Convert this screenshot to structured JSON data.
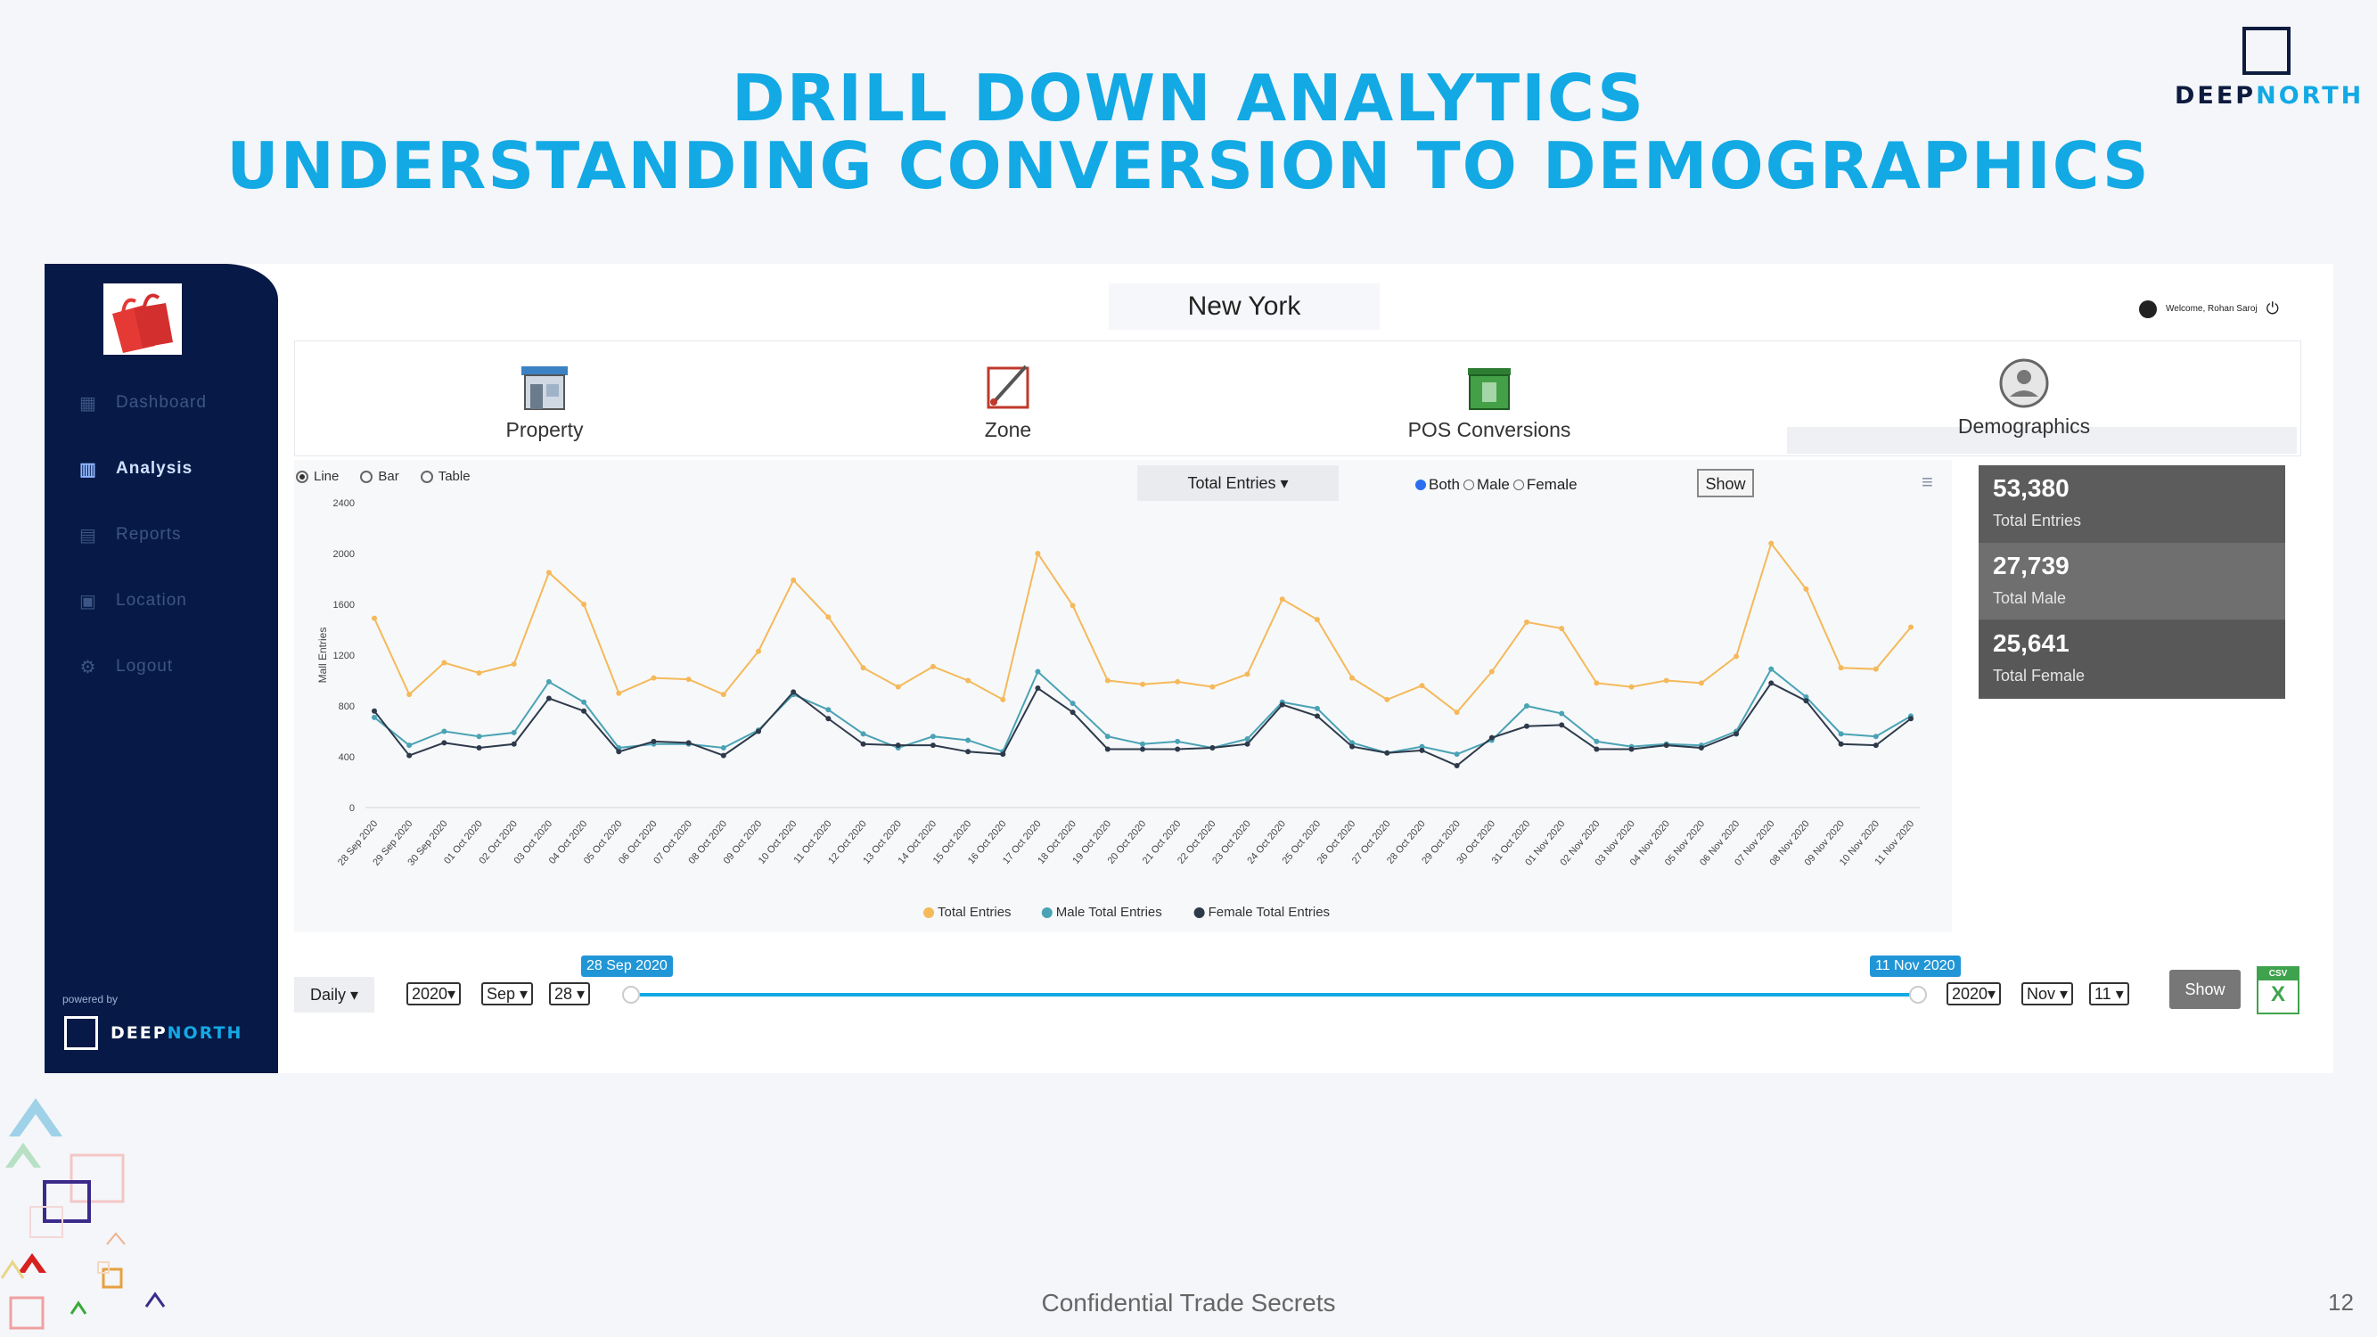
{
  "slide": {
    "title_line1": "DRILL DOWN ANALYTICS",
    "title_line2": "UNDERSTANDING CONVERSION TO DEMOGRAPHICS",
    "brand_a": "DEEP",
    "brand_b": "NORTH",
    "footer": "Confidential Trade Secrets",
    "page_number": "12"
  },
  "sidebar": {
    "items": [
      {
        "label": "Dashboard",
        "icon": "dashboard-icon"
      },
      {
        "label": "Analysis",
        "icon": "analysis-icon"
      },
      {
        "label": "Reports",
        "icon": "reports-icon"
      },
      {
        "label": "Location",
        "icon": "location-icon"
      },
      {
        "label": "Logout",
        "icon": "logout-icon"
      }
    ],
    "active": "Analysis",
    "powered_by": "powered by",
    "brand_a": "DEEP",
    "brand_b": "NORTH"
  },
  "header": {
    "location": "New York",
    "welcome": "Welcome, Rohan Saroj"
  },
  "tabs": [
    {
      "label": "Property",
      "icon": "storefront-icon"
    },
    {
      "label": "Zone",
      "icon": "zone-icon"
    },
    {
      "label": "POS Conversions",
      "icon": "pos-icon"
    },
    {
      "label": "Demographics",
      "icon": "demographics-icon"
    }
  ],
  "controls": {
    "view_modes": [
      "Line",
      "Bar",
      "Table"
    ],
    "view_selected": "Line",
    "metric": "Total Entries",
    "gender_options": [
      "Both",
      "Male",
      "Female"
    ],
    "gender_selected": "Both",
    "show_label": "Show"
  },
  "stats": [
    {
      "value": "53,380",
      "label": "Total Entries"
    },
    {
      "value": "27,739",
      "label": "Total Male"
    },
    {
      "value": "25,641",
      "label": "Total Female"
    }
  ],
  "range": {
    "granularity": "Daily",
    "start": {
      "year": "2020",
      "month": "Sep",
      "day": "28",
      "tag": "28 Sep 2020"
    },
    "end": {
      "year": "2020",
      "month": "Nov",
      "day": "11",
      "tag": "11 Nov 2020"
    },
    "show_label": "Show",
    "csv_label": "CSV"
  },
  "colors": {
    "total": "#f5b95a",
    "male": "#4aa3b5",
    "female": "#2e3a4b"
  },
  "chart_data": {
    "type": "line",
    "ylabel": "Mall Entries",
    "ylim": [
      0,
      2400
    ],
    "yticks": [
      0,
      400,
      800,
      1200,
      1600,
      2000,
      2400
    ],
    "x": [
      "28 Sep 2020",
      "29 Sep 2020",
      "30 Sep 2020",
      "01 Oct 2020",
      "02 Oct 2020",
      "03 Oct 2020",
      "04 Oct 2020",
      "05 Oct 2020",
      "06 Oct 2020",
      "07 Oct 2020",
      "08 Oct 2020",
      "09 Oct 2020",
      "10 Oct 2020",
      "11 Oct 2020",
      "12 Oct 2020",
      "13 Oct 2020",
      "14 Oct 2020",
      "15 Oct 2020",
      "16 Oct 2020",
      "17 Oct 2020",
      "18 Oct 2020",
      "19 Oct 2020",
      "20 Oct 2020",
      "21 Oct 2020",
      "22 Oct 2020",
      "23 Oct 2020",
      "24 Oct 2020",
      "25 Oct 2020",
      "26 Oct 2020",
      "27 Oct 2020",
      "28 Oct 2020",
      "29 Oct 2020",
      "30 Oct 2020",
      "31 Oct 2020",
      "01 Nov 2020",
      "02 Nov 2020",
      "03 Nov 2020",
      "04 Nov 2020",
      "05 Nov 2020",
      "06 Nov 2020",
      "07 Nov 2020",
      "08 Nov 2020",
      "09 Nov 2020",
      "10 Nov 2020",
      "11 Nov 2020"
    ],
    "series": [
      {
        "name": "Total Entries",
        "values": [
          1490,
          890,
          1140,
          1060,
          1130,
          1850,
          1600,
          900,
          1020,
          1010,
          890,
          1230,
          1790,
          1500,
          1100,
          950,
          1110,
          1000,
          850,
          2000,
          1590,
          1000,
          970,
          990,
          950,
          1050,
          1640,
          1480,
          1020,
          850,
          960,
          750,
          1070,
          1460,
          1410,
          980,
          950,
          1000,
          980,
          1190,
          2080,
          1720,
          1100,
          1090,
          1420
        ]
      },
      {
        "name": "Male Total Entries",
        "values": [
          710,
          490,
          600,
          560,
          590,
          990,
          830,
          470,
          500,
          500,
          470,
          610,
          890,
          770,
          580,
          470,
          560,
          530,
          440,
          1070,
          820,
          560,
          500,
          520,
          470,
          540,
          830,
          780,
          510,
          430,
          480,
          420,
          530,
          800,
          740,
          520,
          480,
          500,
          490,
          600,
          1090,
          870,
          580,
          560,
          720
        ]
      },
      {
        "name": "Female Total Entries",
        "values": [
          760,
          410,
          510,
          470,
          500,
          860,
          760,
          440,
          520,
          510,
          410,
          600,
          910,
          700,
          500,
          490,
          490,
          440,
          420,
          940,
          750,
          460,
          460,
          460,
          470,
          500,
          810,
          720,
          480,
          430,
          450,
          330,
          550,
          640,
          650,
          460,
          460,
          490,
          470,
          580,
          980,
          840,
          500,
          490,
          700
        ]
      }
    ],
    "legend": [
      "Total Entries",
      "Male Total Entries",
      "Female Total Entries"
    ],
    "legend_position": "bottom"
  }
}
